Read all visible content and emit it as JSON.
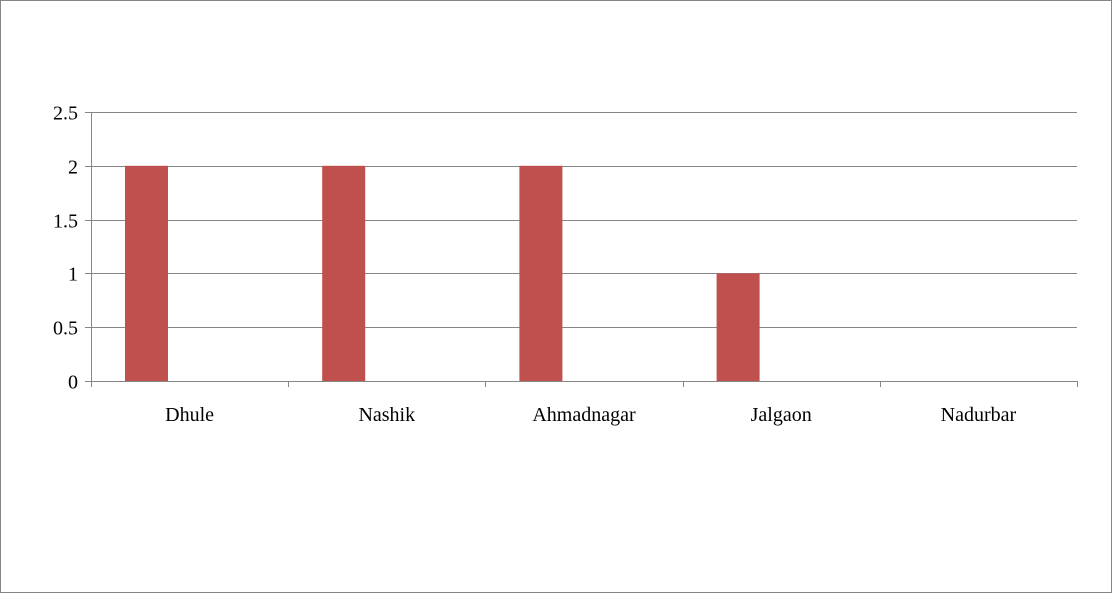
{
  "chart_data": {
    "type": "bar",
    "categories": [
      "Dhule",
      "Nashik",
      "Ahmadnagar",
      "Jalgaon",
      "Nadurbar"
    ],
    "series": [
      {
        "values": [
          2,
          2,
          2,
          1,
          0
        ],
        "color": "#C0504D"
      }
    ],
    "title": "",
    "xlabel": "",
    "ylabel": "",
    "ylim": [
      0,
      2.5
    ],
    "yticks": [
      "0",
      "0.5",
      "1",
      "1.5",
      "2",
      "2.5"
    ],
    "grid": true,
    "legend": "none"
  }
}
